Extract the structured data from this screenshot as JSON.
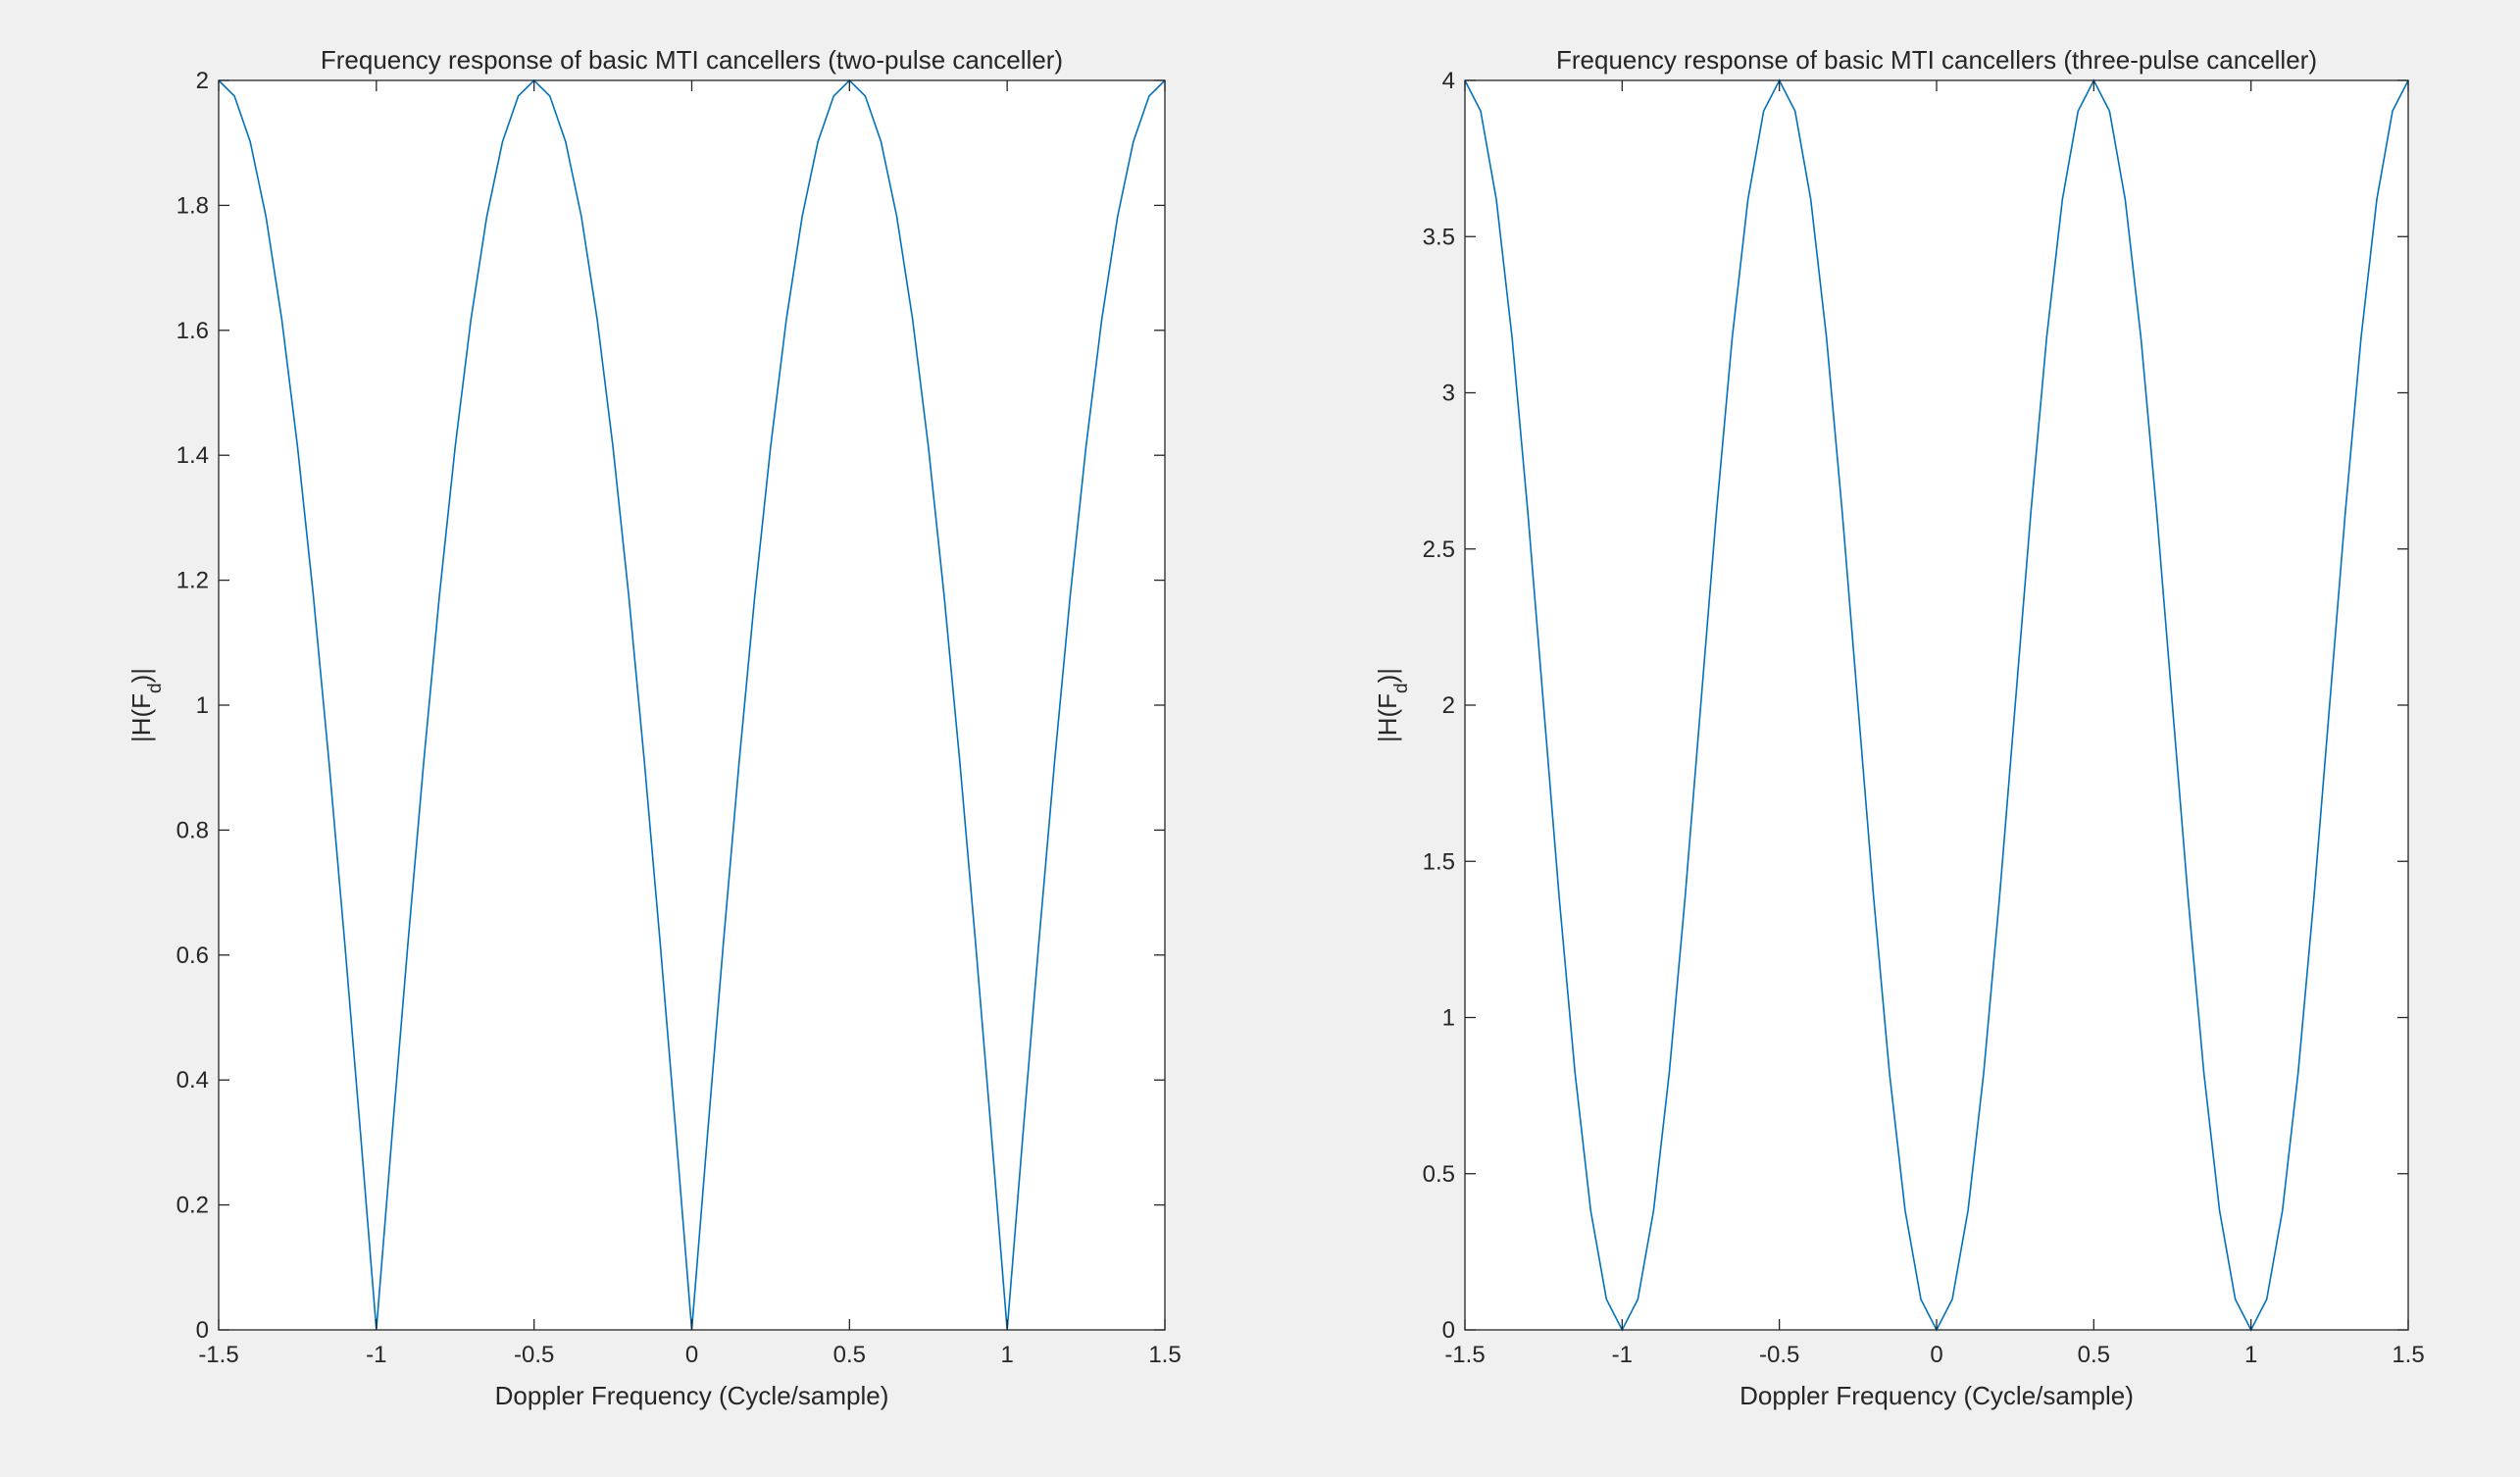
{
  "figure": {
    "background": "#f0f0f0",
    "axes_background": "#ffffff",
    "line_color": "#0072bd",
    "axis_color": "#262626"
  },
  "chart_data": [
    {
      "type": "line",
      "title": "Frequency response of basic MTI cancellers (two-pulse canceller)",
      "xlabel": "Doppler Frequency (Cycle/sample)",
      "ylabel_main": "|H(F",
      "ylabel_sub": "d",
      "ylabel_end": ")|",
      "xlim": [
        -1.5,
        1.5
      ],
      "ylim": [
        0,
        2
      ],
      "xticks": [
        -1.5,
        -1,
        -0.5,
        0,
        0.5,
        1,
        1.5
      ],
      "xtick_labels": [
        "-1.5",
        "-1",
        "-0.5",
        "0",
        "0.5",
        "1",
        "1.5"
      ],
      "yticks": [
        0,
        0.2,
        0.4,
        0.6,
        0.8,
        1,
        1.2,
        1.4,
        1.6,
        1.8,
        2
      ],
      "ytick_labels": [
        "0",
        "0.2",
        "0.4",
        "0.6",
        "0.8",
        "1",
        "1.2",
        "1.4",
        "1.6",
        "1.8",
        "2"
      ],
      "grid": false,
      "series": [
        {
          "x": [
            -1.5,
            -1.45,
            -1.4,
            -1.35,
            -1.3,
            -1.25,
            -1.2,
            -1.15,
            -1.1,
            -1.05,
            -1.0,
            -0.95,
            -0.9,
            -0.85,
            -0.8,
            -0.75,
            -0.7,
            -0.65,
            -0.6,
            -0.55,
            -0.5,
            -0.45,
            -0.4,
            -0.35,
            -0.3,
            -0.25,
            -0.2,
            -0.15,
            -0.1,
            -0.05,
            0.0,
            0.05,
            0.1,
            0.15,
            0.2,
            0.25,
            0.3,
            0.35,
            0.4,
            0.45,
            0.5,
            0.55,
            0.6,
            0.65,
            0.7,
            0.75,
            0.8,
            0.85,
            0.9,
            0.95,
            1.0,
            1.05,
            1.1,
            1.15,
            1.2,
            1.25,
            1.3,
            1.35,
            1.4,
            1.45,
            1.5
          ],
          "y": [
            2.0,
            1.975,
            1.902,
            1.782,
            1.618,
            1.414,
            1.176,
            0.908,
            0.618,
            0.313,
            0.0,
            0.313,
            0.618,
            0.908,
            1.176,
            1.414,
            1.618,
            1.782,
            1.902,
            1.975,
            2.0,
            1.975,
            1.902,
            1.782,
            1.618,
            1.414,
            1.176,
            0.908,
            0.618,
            0.313,
            0.0,
            0.313,
            0.618,
            0.908,
            1.176,
            1.414,
            1.618,
            1.782,
            1.902,
            1.975,
            2.0,
            1.975,
            1.902,
            1.782,
            1.618,
            1.414,
            1.176,
            0.908,
            0.618,
            0.313,
            0.0,
            0.313,
            0.618,
            0.908,
            1.176,
            1.414,
            1.618,
            1.782,
            1.902,
            1.975,
            2.0
          ]
        }
      ]
    },
    {
      "type": "line",
      "title": "Frequency response of basic MTI cancellers (three-pulse canceller)",
      "xlabel": "Doppler Frequency (Cycle/sample)",
      "ylabel_main": "|H(F",
      "ylabel_sub": "d",
      "ylabel_end": ")|",
      "xlim": [
        -1.5,
        1.5
      ],
      "ylim": [
        0,
        4
      ],
      "xticks": [
        -1.5,
        -1,
        -0.5,
        0,
        0.5,
        1,
        1.5
      ],
      "xtick_labels": [
        "-1.5",
        "-1",
        "-0.5",
        "0",
        "0.5",
        "1",
        "1.5"
      ],
      "yticks": [
        0,
        0.5,
        1,
        1.5,
        2,
        2.5,
        3,
        3.5,
        4
      ],
      "ytick_labels": [
        "0",
        "0.5",
        "1",
        "1.5",
        "2",
        "2.5",
        "3",
        "3.5",
        "4"
      ],
      "grid": false,
      "series": [
        {
          "x": [
            -1.5,
            -1.45,
            -1.4,
            -1.35,
            -1.3,
            -1.25,
            -1.2,
            -1.15,
            -1.1,
            -1.05,
            -1.0,
            -0.95,
            -0.9,
            -0.85,
            -0.8,
            -0.75,
            -0.7,
            -0.65,
            -0.6,
            -0.55,
            -0.5,
            -0.45,
            -0.4,
            -0.35,
            -0.3,
            -0.25,
            -0.2,
            -0.15,
            -0.1,
            -0.05,
            0.0,
            0.05,
            0.1,
            0.15,
            0.2,
            0.25,
            0.3,
            0.35,
            0.4,
            0.45,
            0.5,
            0.55,
            0.6,
            0.65,
            0.7,
            0.75,
            0.8,
            0.85,
            0.9,
            0.95,
            1.0,
            1.05,
            1.1,
            1.15,
            1.2,
            1.25,
            1.3,
            1.35,
            1.4,
            1.45,
            1.5
          ],
          "y": [
            4.0,
            3.902,
            3.618,
            3.176,
            2.618,
            2.0,
            1.382,
            0.824,
            0.382,
            0.098,
            0.0,
            0.098,
            0.382,
            0.824,
            1.382,
            2.0,
            2.618,
            3.176,
            3.618,
            3.902,
            4.0,
            3.902,
            3.618,
            3.176,
            2.618,
            2.0,
            1.382,
            0.824,
            0.382,
            0.098,
            0.0,
            0.098,
            0.382,
            0.824,
            1.382,
            2.0,
            2.618,
            3.176,
            3.618,
            3.902,
            4.0,
            3.902,
            3.618,
            3.176,
            2.618,
            2.0,
            1.382,
            0.824,
            0.382,
            0.098,
            0.0,
            0.098,
            0.382,
            0.824,
            1.382,
            2.0,
            2.618,
            3.176,
            3.618,
            3.902,
            4.0
          ]
        }
      ]
    }
  ]
}
